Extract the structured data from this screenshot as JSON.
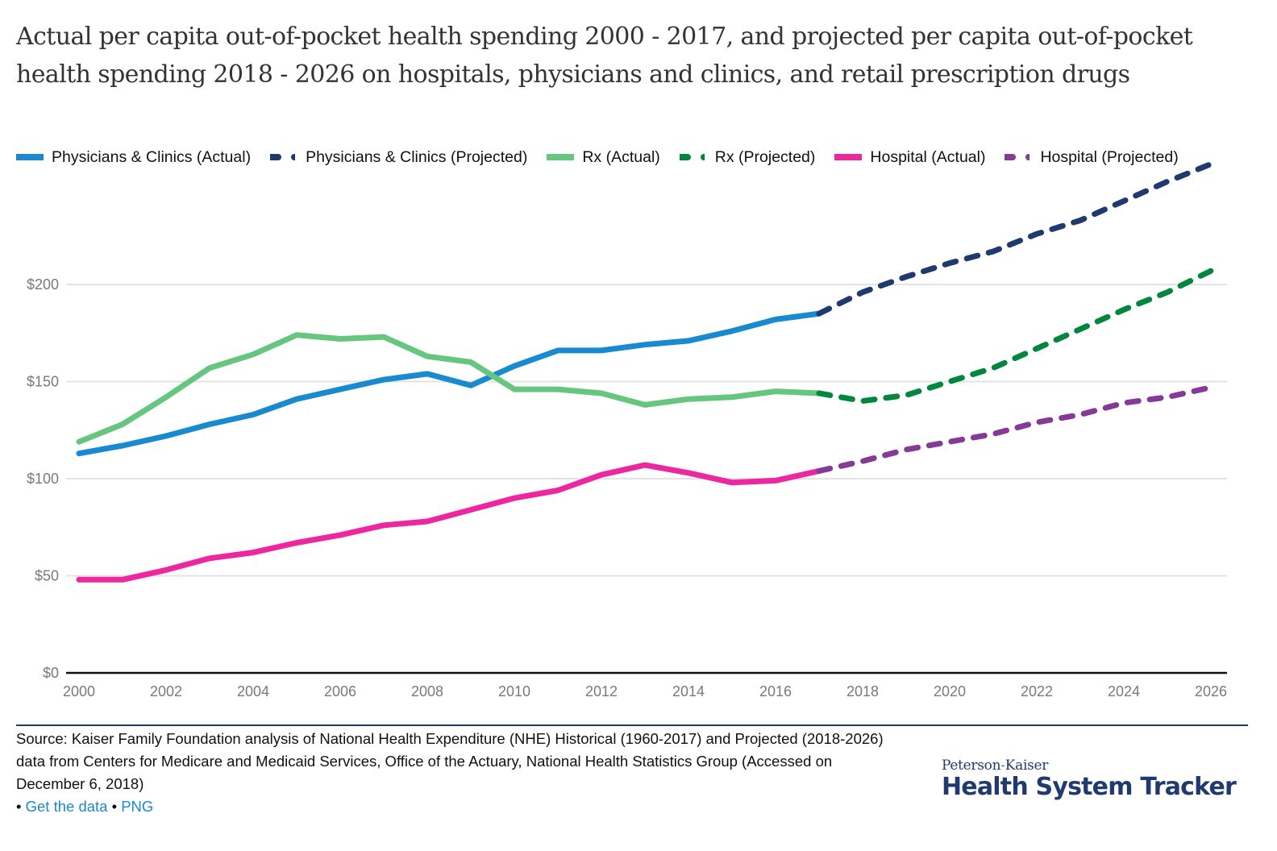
{
  "header": {
    "title": "Actual per capita out-of-pocket health spending 2000 - 2017, and projected per capita out-of-pocket health spending 2018 - 2026 on hospitals, physicians and clinics, and retail prescription drugs"
  },
  "legend": [
    {
      "label": "Physicians & Clinics (Actual)",
      "color": "#1a8ad0",
      "style": "solid"
    },
    {
      "label": "Physicians & Clinics (Projected)",
      "color": "#1f3a6e",
      "style": "dashed"
    },
    {
      "label": "Rx (Actual)",
      "color": "#66c57f",
      "style": "solid"
    },
    {
      "label": "Rx (Projected)",
      "color": "#00873d",
      "style": "dashed"
    },
    {
      "label": "Hospital (Actual)",
      "color": "#ec27a0",
      "style": "solid"
    },
    {
      "label": "Hospital (Projected)",
      "color": "#853a97",
      "style": "dashed"
    }
  ],
  "chart_data": {
    "type": "line",
    "title": "Actual per capita out-of-pocket health spending 2000 - 2017, and projected per capita out-of-pocket health spending 2018 - 2026 on hospitals, physicians and clinics, and retail prescription drugs",
    "xlabel": "",
    "ylabel": "",
    "xlim": [
      2000,
      2026
    ],
    "ylim": [
      0,
      200
    ],
    "y_ticks": [
      0,
      50,
      100,
      150,
      200
    ],
    "y_tick_labels": [
      "$0",
      "$50",
      "$100",
      "$150",
      "$200"
    ],
    "x_ticks": [
      2000,
      2002,
      2004,
      2006,
      2008,
      2010,
      2012,
      2014,
      2016,
      2018,
      2020,
      2022,
      2024,
      2026
    ],
    "x_tick_labels": [
      "2000",
      "2002",
      "2004",
      "2006",
      "2008",
      "2010",
      "2012",
      "2014",
      "2016",
      "2018",
      "2020",
      "2022",
      "2024",
      "2026"
    ],
    "grid": true,
    "legend_position": "top-left",
    "series": [
      {
        "name": "Physicians & Clinics (Actual)",
        "color": "#1a8ad0",
        "dashed": false,
        "x": [
          2000,
          2001,
          2002,
          2003,
          2004,
          2005,
          2006,
          2007,
          2008,
          2009,
          2010,
          2011,
          2012,
          2013,
          2014,
          2015,
          2016,
          2017
        ],
        "values": [
          113,
          117,
          122,
          128,
          133,
          141,
          146,
          151,
          154,
          148,
          158,
          166,
          166,
          169,
          171,
          176,
          182,
          185
        ]
      },
      {
        "name": "Physicians & Clinics (Projected)",
        "color": "#1f3a6e",
        "dashed": true,
        "x": [
          2017,
          2018,
          2019,
          2020,
          2021,
          2022,
          2023,
          2024,
          2025,
          2026
        ],
        "values": [
          185,
          196,
          204,
          211,
          217,
          226,
          233,
          243,
          253,
          262
        ]
      },
      {
        "name": "Rx (Actual)",
        "color": "#66c57f",
        "dashed": false,
        "x": [
          2000,
          2001,
          2002,
          2003,
          2004,
          2005,
          2006,
          2007,
          2008,
          2009,
          2010,
          2011,
          2012,
          2013,
          2014,
          2015,
          2016,
          2017
        ],
        "values": [
          119,
          128,
          142,
          157,
          164,
          174,
          172,
          173,
          163,
          160,
          146,
          146,
          144,
          138,
          141,
          142,
          145,
          144
        ]
      },
      {
        "name": "Rx (Projected)",
        "color": "#00873d",
        "dashed": true,
        "x": [
          2017,
          2018,
          2019,
          2020,
          2021,
          2022,
          2023,
          2024,
          2025,
          2026
        ],
        "values": [
          144,
          140,
          143,
          150,
          157,
          167,
          177,
          187,
          196,
          207
        ]
      },
      {
        "name": "Hospital (Actual)",
        "color": "#ec27a0",
        "dashed": false,
        "x": [
          2000,
          2001,
          2002,
          2003,
          2004,
          2005,
          2006,
          2007,
          2008,
          2009,
          2010,
          2011,
          2012,
          2013,
          2014,
          2015,
          2016,
          2017
        ],
        "values": [
          48,
          48,
          53,
          59,
          62,
          67,
          71,
          76,
          78,
          84,
          90,
          94,
          102,
          107,
          103,
          98,
          99,
          104
        ]
      },
      {
        "name": "Hospital (Projected)",
        "color": "#853a97",
        "dashed": true,
        "x": [
          2017,
          2018,
          2019,
          2020,
          2021,
          2022,
          2023,
          2024,
          2025,
          2026
        ],
        "values": [
          104,
          109,
          115,
          119,
          123,
          129,
          133,
          139,
          142,
          147
        ]
      }
    ]
  },
  "footer": {
    "source_text": "Source: Kaiser Family Foundation analysis of National Health Expenditure (NHE) Historical (1960-2017) and Projected (2018-2026) data from Centers for Medicare and Medicaid Services, Office of the Actuary, National Health Statistics Group (Accessed on December 6, 2018)",
    "bullet": "•",
    "get_data_label": "Get the data",
    "png_label": "PNG",
    "brand_top_1": "Peterson",
    "brand_top_dash": "-",
    "brand_top_2": "Kaiser",
    "brand_main": "Health System Tracker"
  }
}
